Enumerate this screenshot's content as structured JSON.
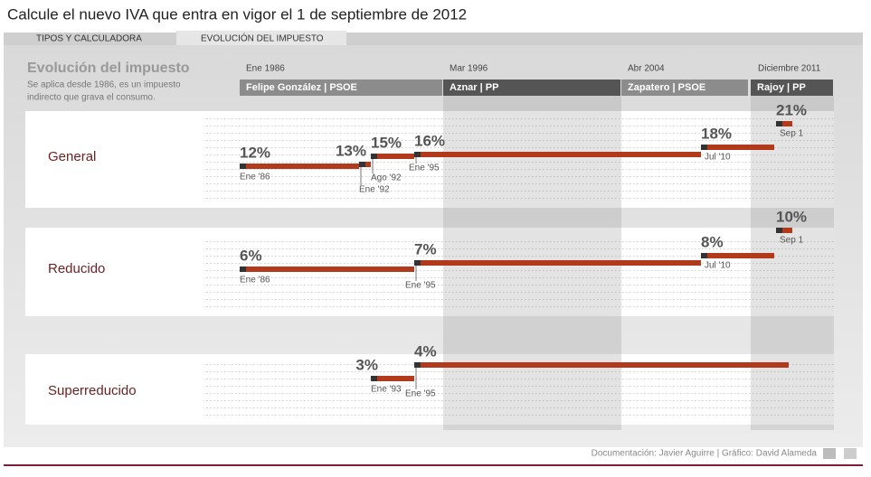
{
  "header": {
    "title": "Calcule el nuevo IVA que entra en vigor el 1 de septiembre de 2012",
    "tabs": [
      "TIPOS Y CALCULADORA",
      "EVOLUCIÓN DEL IMPUESTO"
    ],
    "section_title": "Evolución del impuesto",
    "description": [
      "Se aplica desde 1986, es un impuesto",
      "indirecto que grava el consumo."
    ]
  },
  "periods": [
    {
      "start": "Ene 1986",
      "label": "Felipe González | PSOE"
    },
    {
      "start": "Mar 1996",
      "label": "Aznar | PP"
    },
    {
      "start": "Abr 2004",
      "label": "Zapatero | PSOE"
    },
    {
      "start": "Diciembre 2011",
      "label": "Rajoy | PP"
    }
  ],
  "rows": [
    {
      "name": "General",
      "segments": [
        {
          "rate": "12%",
          "date": "Ene '86"
        },
        {
          "rate": "13%",
          "date": "Ene '92"
        },
        {
          "rate": "15%",
          "date": "Ago '92"
        },
        {
          "rate": "16%",
          "date": "Ene '95"
        },
        {
          "rate": "18%",
          "date": "Jul '10"
        },
        {
          "rate": "21%",
          "date": "Sep 1"
        }
      ]
    },
    {
      "name": "Reducido",
      "segments": [
        {
          "rate": "6%",
          "date": "Ene '86"
        },
        {
          "rate": "7%",
          "date": "Ene '95"
        },
        {
          "rate": "8%",
          "date": "Jul '10"
        },
        {
          "rate": "10%",
          "date": "Sep 1"
        }
      ]
    },
    {
      "name": "Superreducido",
      "segments": [
        {
          "rate": "3%",
          "date": "Ene '93"
        },
        {
          "rate": "4%",
          "date": "Ene '95"
        }
      ]
    }
  ],
  "footer": "Documentación: Javier Aguirre | Gráfico: David Alameda"
}
